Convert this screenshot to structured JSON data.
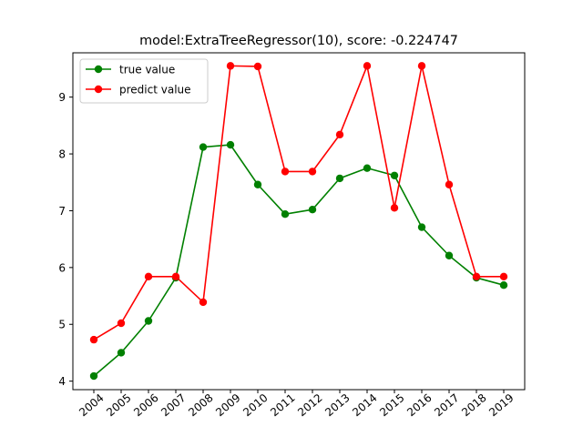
{
  "chart_data": {
    "type": "line",
    "title": "model:ExtraTreeRegressor(10), score: -0.224747",
    "xlabel": "",
    "ylabel": "",
    "x": [
      "2004",
      "2005",
      "2006",
      "2007",
      "2008",
      "2009",
      "2010",
      "2011",
      "2012",
      "2013",
      "2014",
      "2015",
      "2016",
      "2017",
      "2018",
      "2019"
    ],
    "ylim": [
      3.85,
      9.78
    ],
    "yticks": [
      "4",
      "5",
      "6",
      "7",
      "8",
      "9"
    ],
    "grid": false,
    "legend_position": "upper-left",
    "series": [
      {
        "name": "true value",
        "color": "#008000",
        "values": [
          4.09,
          4.5,
          5.06,
          5.82,
          8.12,
          8.16,
          7.46,
          6.94,
          7.02,
          7.57,
          7.75,
          7.62,
          6.71,
          6.21,
          5.82,
          5.69
        ]
      },
      {
        "name": "predict value",
        "color": "#ff0000",
        "values": [
          4.73,
          5.02,
          5.84,
          5.84,
          5.39,
          9.55,
          9.54,
          7.69,
          7.69,
          8.34,
          9.55,
          7.05,
          9.55,
          7.46,
          5.84,
          5.84
        ]
      }
    ]
  }
}
